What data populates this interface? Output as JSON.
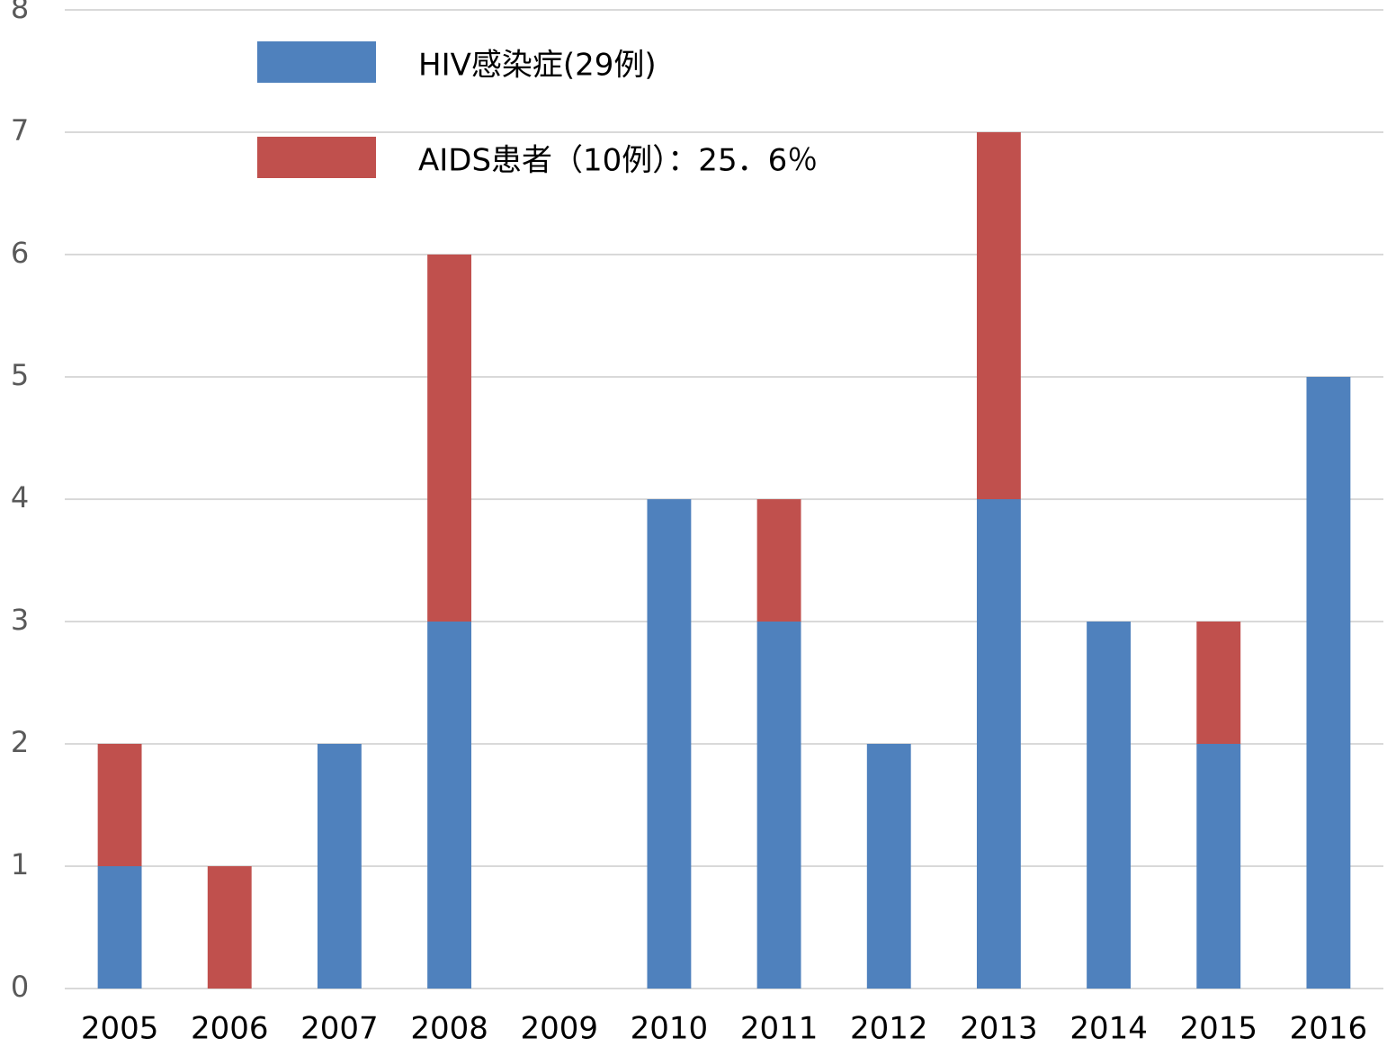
{
  "chart_data": {
    "type": "stacked_bar",
    "categories": [
      "2005",
      "2006",
      "2007",
      "2008",
      "2009",
      "2010",
      "2011",
      "2012",
      "2013",
      "2014",
      "2015",
      "2016"
    ],
    "series": [
      {
        "name": "HIV感染症(29例)",
        "color": "#4f81bd",
        "values": [
          1,
          0,
          2,
          3,
          0,
          4,
          3,
          2,
          4,
          3,
          2,
          5
        ]
      },
      {
        "name": "AIDS患者（10例）：25．6％",
        "color": "#c0504d",
        "values": [
          1,
          1,
          0,
          3,
          0,
          0,
          1,
          0,
          3,
          0,
          1,
          0
        ]
      }
    ],
    "ylim": [
      0,
      8
    ],
    "yticks": [
      0,
      1,
      2,
      3,
      4,
      5,
      6,
      7,
      8
    ],
    "grid": true,
    "legend": "top-left"
  }
}
